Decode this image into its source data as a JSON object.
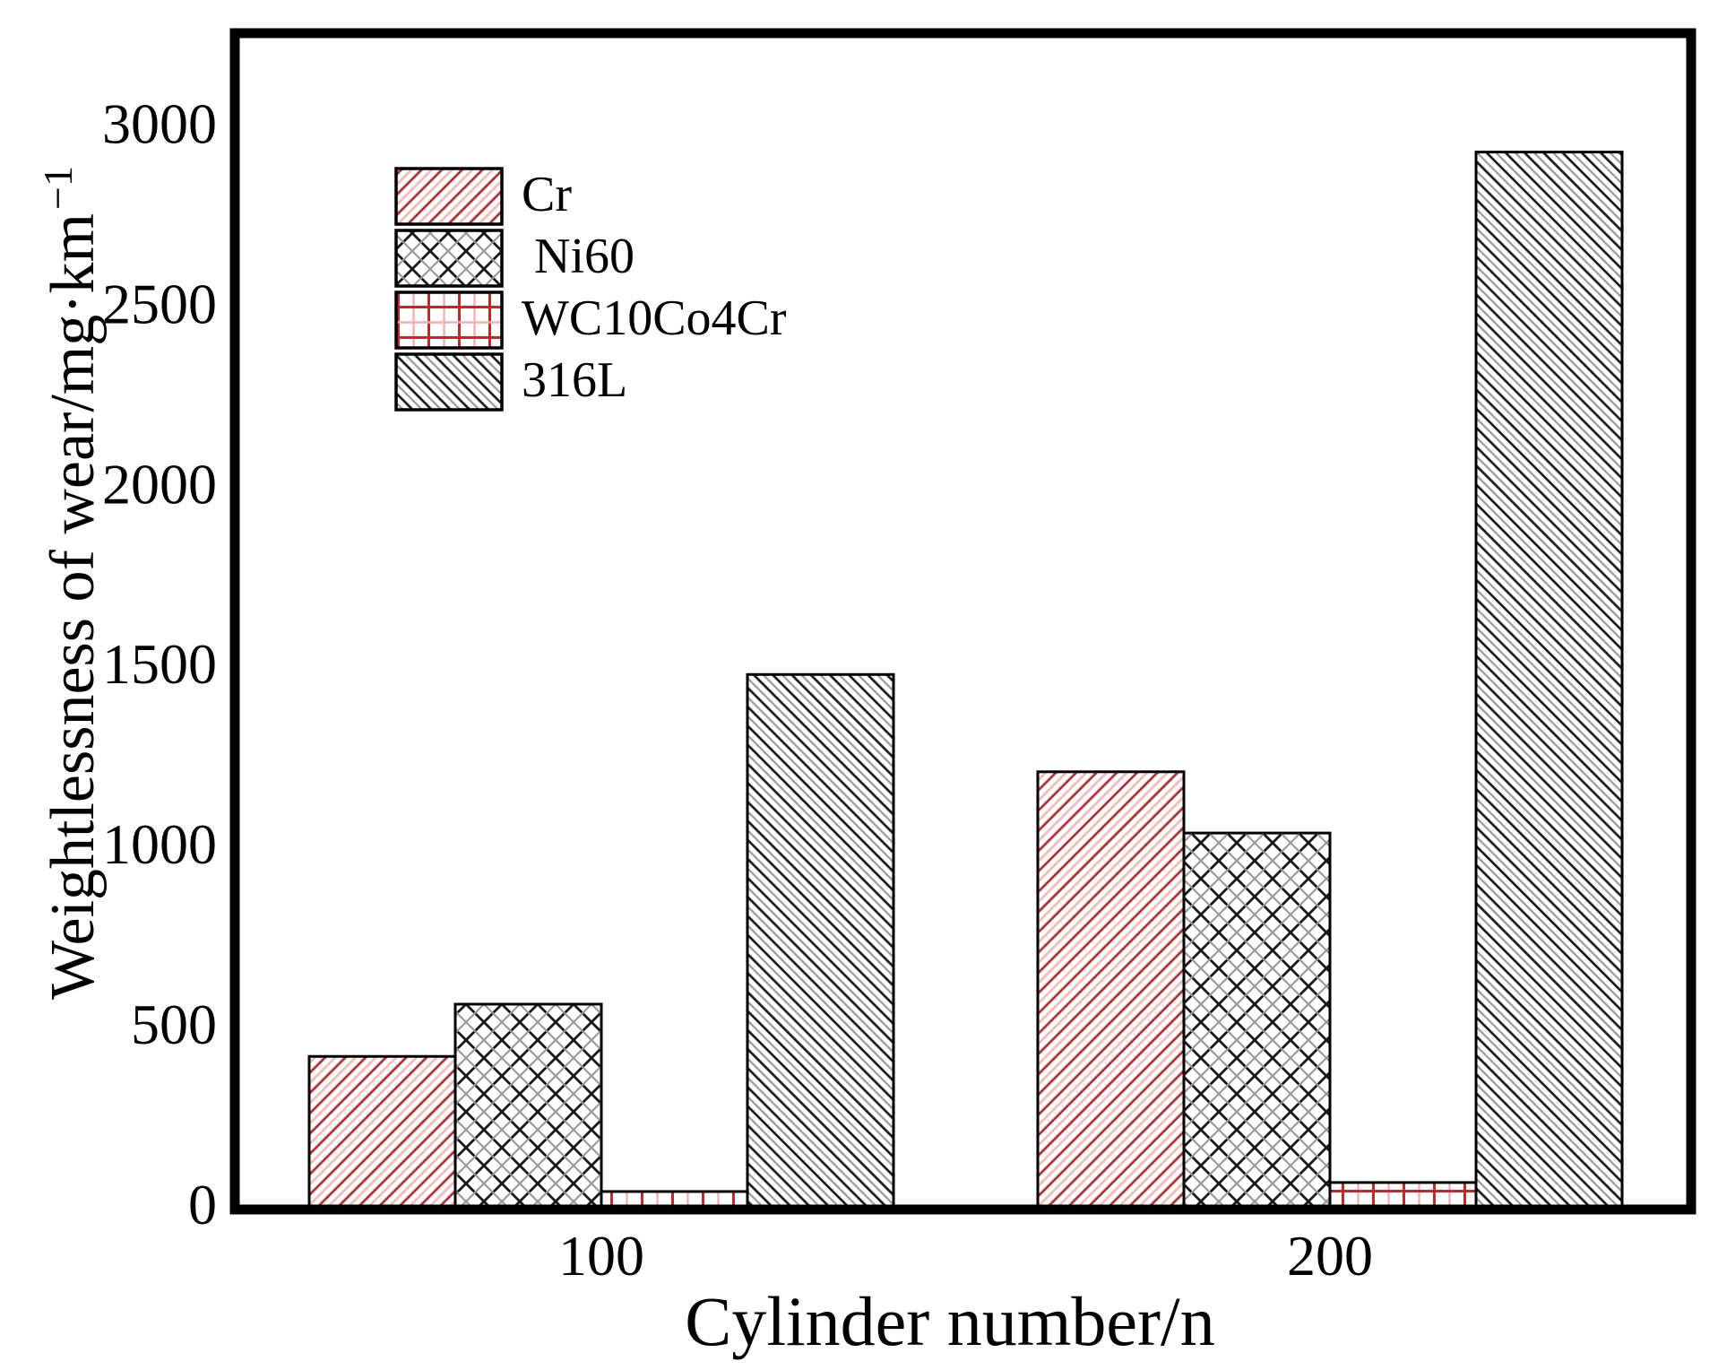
{
  "figure": {
    "background": "#ffffff"
  },
  "chart_data": {
    "type": "bar",
    "title": "",
    "xlabel": "Cylinder number/n",
    "ylabel": "Weightlessness of wear/mg·km⁻¹",
    "ylabel_base": "Weightlessness of wear/mg·km",
    "ylabel_sup": "−1",
    "categories": [
      "100",
      "200"
    ],
    "series": [
      {
        "name": "Cr",
        "values": [
          410,
          1200
        ],
        "pattern": "diag-red"
      },
      {
        "name": "Ni60",
        "values": [
          555,
          1030
        ],
        "pattern": "cross-black"
      },
      {
        "name": "WC10Co4Cr",
        "values": [
          35,
          60
        ],
        "pattern": "grid-red"
      },
      {
        "name": "316L",
        "values": [
          1470,
          2920
        ],
        "pattern": "diag-black"
      }
    ],
    "yticks": [
      0,
      500,
      1000,
      1500,
      2000,
      2500,
      3000
    ],
    "ylim": [
      0,
      3250
    ],
    "grid": false,
    "legend_position": "upper-left-inside",
    "colors": {
      "frame": "#000000",
      "bar_outline": "#000000",
      "hatch_red_dark": "#b03336",
      "hatch_red_light": "#f0bcbc",
      "grid_red_dark": "#c32828",
      "grid_red_light": "#efb2b2",
      "hatch_black": "#1a1a1a",
      "hatch_gray": "#9a9a9a",
      "pattern_background": "#ffffff"
    }
  }
}
